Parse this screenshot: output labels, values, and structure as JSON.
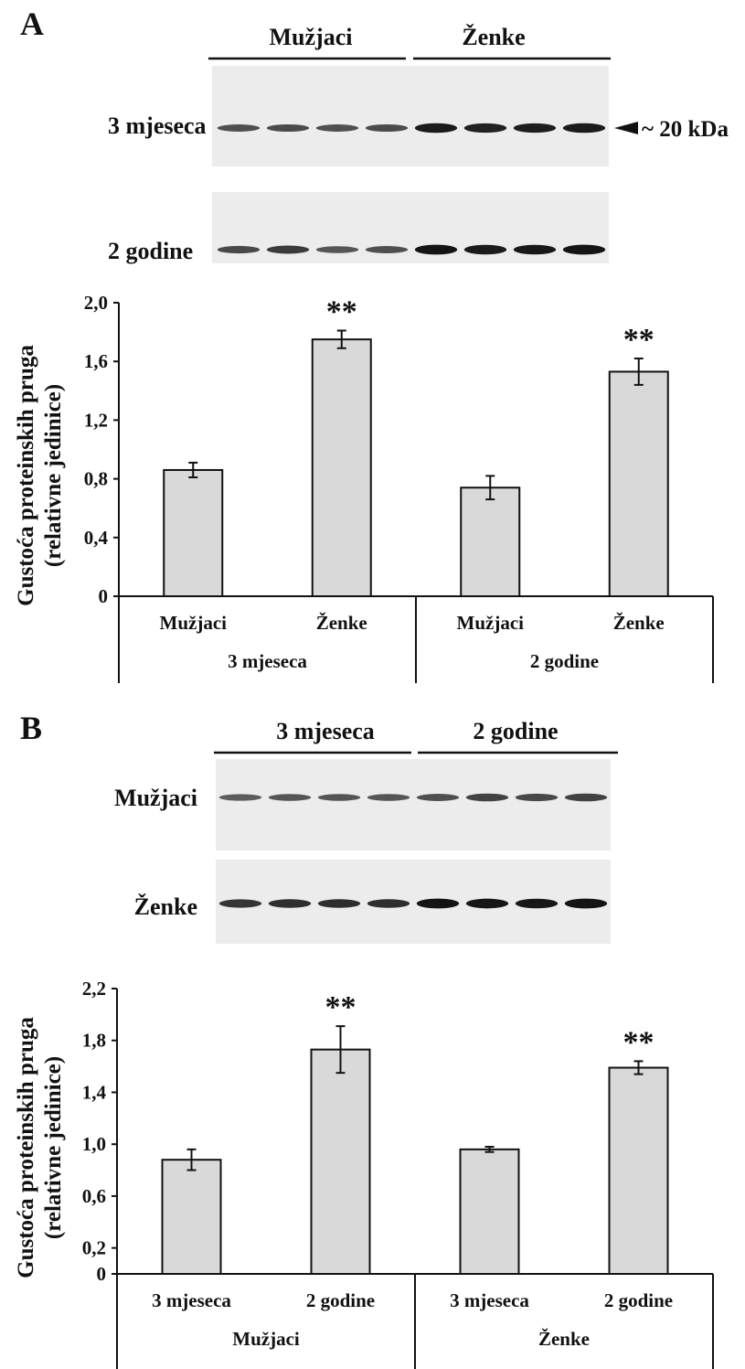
{
  "panels": [
    {
      "letter": "A",
      "blot": {
        "group_labels": [
          "Mužjaci",
          "Ženke"
        ],
        "row_labels": [
          "3 mjeseca",
          "2 godine"
        ],
        "marker_label": "~ 20 kDa",
        "band_intensity": [
          [
            0.55,
            0.58,
            0.55,
            0.58,
            0.95,
            0.9,
            0.92,
            0.95
          ],
          [
            0.6,
            0.7,
            0.5,
            0.55,
            1.0,
            0.95,
            0.97,
            1.0
          ]
        ]
      }
    },
    {
      "letter": "B",
      "blot": {
        "group_labels": [
          "3 mjeseca",
          "2 godine"
        ],
        "row_labels": [
          "Mužjaci",
          "Ženke"
        ],
        "band_intensity": [
          [
            0.45,
            0.5,
            0.5,
            0.5,
            0.55,
            0.65,
            0.6,
            0.65
          ],
          [
            0.75,
            0.8,
            0.8,
            0.8,
            1.0,
            0.98,
            0.97,
            1.0
          ]
        ]
      }
    }
  ],
  "chart_data": [
    {
      "type": "bar",
      "ylabel": [
        "Gustoća proteinskih pruga",
        "(relativne jedinice)"
      ],
      "yticks": [
        "0",
        "0,4",
        "0,8",
        "1,2",
        "1,6",
        "2,0"
      ],
      "ytick_values": [
        0,
        0.4,
        0.8,
        1.2,
        1.6,
        2.0
      ],
      "ylim": [
        0,
        2.0
      ],
      "categories": [
        "Mužjaci",
        "Ženke",
        "Mužjaci",
        "Ženke"
      ],
      "groups": [
        "3 mjeseca",
        "2 godine"
      ],
      "values": [
        0.86,
        1.75,
        0.74,
        1.53
      ],
      "errors": [
        0.05,
        0.06,
        0.08,
        0.09
      ],
      "significance": [
        "",
        "**",
        "",
        "**"
      ],
      "bar_color": "#d9d9d9"
    },
    {
      "type": "bar",
      "ylabel": [
        "Gustoća proteinskih pruga",
        "(relativne jedinice)"
      ],
      "yticks": [
        "0",
        "0,2",
        "0,6",
        "1,0",
        "1,4",
        "1,8",
        "2,2"
      ],
      "ytick_values": [
        0,
        0.2,
        0.6,
        1.0,
        1.4,
        1.8,
        2.2
      ],
      "ylim": [
        0,
        2.2
      ],
      "categories": [
        "3 mjeseca",
        "2 godine",
        "3 mjeseca",
        "2 godine"
      ],
      "groups": [
        "Mužjaci",
        "Ženke"
      ],
      "values": [
        0.88,
        1.73,
        0.96,
        1.59
      ],
      "errors": [
        0.08,
        0.18,
        0.02,
        0.05
      ],
      "significance": [
        "",
        "**",
        "",
        "**"
      ],
      "bar_color": "#d9d9d9"
    }
  ]
}
